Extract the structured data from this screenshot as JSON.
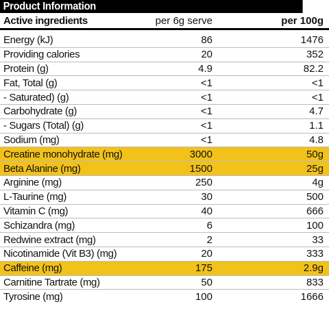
{
  "panel": {
    "title": "Product Information",
    "highlight_color": "#f2c21b"
  },
  "table": {
    "headers": {
      "name": "Active ingredients",
      "per_serve": "per 6g serve",
      "per_100g": "per 100g"
    },
    "rows": [
      {
        "name": "Energy (kJ)",
        "per_serve": "86",
        "per_100g": "1476",
        "highlight": false
      },
      {
        "name": "Providing calories",
        "per_serve": "20",
        "per_100g": "352",
        "highlight": false
      },
      {
        "name": "Protein (g)",
        "per_serve": "4.9",
        "per_100g": "82.2",
        "highlight": false
      },
      {
        "name": "Fat, Total (g)",
        "per_serve": "<1",
        "per_100g": "<1",
        "highlight": false
      },
      {
        "name": " - Saturated) (g)",
        "per_serve": "<1",
        "per_100g": "<1",
        "highlight": false
      },
      {
        "name": "Carbohydrate (g)",
        "per_serve": "<1",
        "per_100g": "4.7",
        "highlight": false
      },
      {
        "name": " - Sugars (Total) (g)",
        "per_serve": "<1",
        "per_100g": "1.1",
        "highlight": false
      },
      {
        "name": "Sodium (mg)",
        "per_serve": "<1",
        "per_100g": "4.8",
        "highlight": false
      },
      {
        "name": "Creatine monohydrate (mg)",
        "per_serve": "3000",
        "per_100g": "50g",
        "highlight": true
      },
      {
        "name": "Beta Alanine (mg)",
        "per_serve": "1500",
        "per_100g": "25g",
        "highlight": true
      },
      {
        "name": "Arginine (mg)",
        "per_serve": "250",
        "per_100g": "4g",
        "highlight": false
      },
      {
        "name": "L-Taurine (mg)",
        "per_serve": "30",
        "per_100g": "500",
        "highlight": false
      },
      {
        "name": "Vitamin C (mg)",
        "per_serve": "40",
        "per_100g": "666",
        "highlight": false
      },
      {
        "name": "Schizandra (mg)",
        "per_serve": "6",
        "per_100g": "100",
        "highlight": false
      },
      {
        "name": "Redwine extract (mg)",
        "per_serve": "2",
        "per_100g": "33",
        "highlight": false
      },
      {
        "name": "Nicotinamide (Vit B3) (mg)",
        "per_serve": "20",
        "per_100g": "333",
        "highlight": false
      },
      {
        "name": "Caffeine (mg)",
        "per_serve": "175",
        "per_100g": "2.9g",
        "highlight": true
      },
      {
        "name": "Carnitine Tartrate (mg)",
        "per_serve": "50",
        "per_100g": "833",
        "highlight": false
      },
      {
        "name": "Tyrosine (mg)",
        "per_serve": "100",
        "per_100g": "1666",
        "highlight": false
      }
    ]
  }
}
